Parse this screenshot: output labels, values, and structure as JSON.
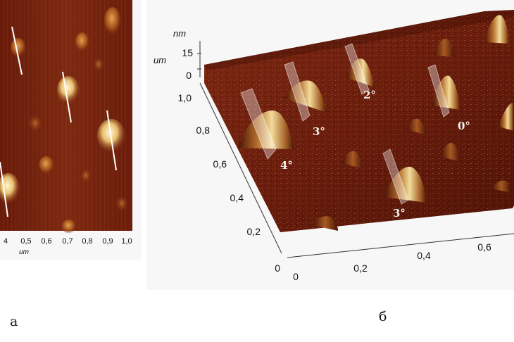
{
  "panel_a": {
    "x_ticks": [
      "4",
      "0,5",
      "0,6",
      "0,7",
      "0,8",
      "0,9",
      "1,0"
    ],
    "x_unit": "um",
    "caption": "а"
  },
  "panel_b": {
    "z_unit": "nm",
    "y_unit": "um",
    "z_ticks": [
      "15",
      "0"
    ],
    "y_ticks": [
      "1,0",
      "0,8",
      "0,6",
      "0,4",
      "0,2",
      "0"
    ],
    "x_ticks": [
      "0",
      "0,2",
      "0,4",
      "0,6"
    ],
    "angle_labels": [
      "2°",
      "3°",
      "0°",
      "4°",
      "3°"
    ],
    "caption": "б"
  },
  "colors": {
    "surface_dark": "#5a1608",
    "surface_mid": "#7a2410",
    "grain_bright": "#f0e0a0",
    "background_panel": "#f7f7f7"
  }
}
